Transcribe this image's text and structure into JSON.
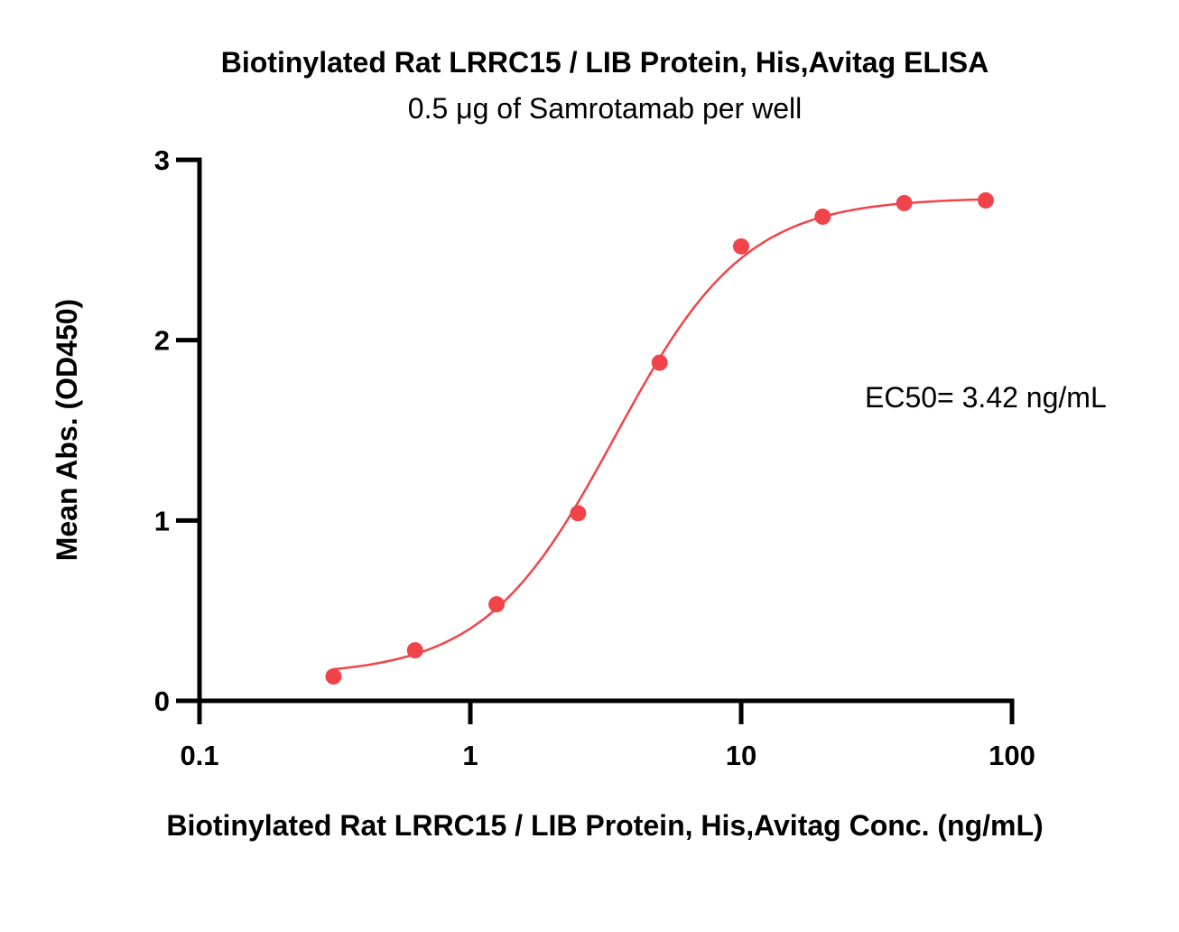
{
  "chart_data": {
    "type": "scatter",
    "title": "Biotinylated Rat LRRC15 / LIB Protein, His,Avitag ELISA",
    "subtitle": "0.5 μg of Samrotamab per well",
    "xlabel": "Biotinylated Rat LRRC15 / LIB Protein, His,Avitag Conc. (ng/mL)",
    "ylabel": "Mean Abs. (OD450)",
    "x_scale": "log",
    "xlim": [
      0.1,
      100
    ],
    "ylim": [
      0,
      3
    ],
    "x_ticks": [
      0.1,
      1,
      10,
      100
    ],
    "x_tick_labels": [
      "0.1",
      "1",
      "10",
      "100"
    ],
    "y_ticks": [
      0,
      1,
      2,
      3
    ],
    "y_tick_labels": [
      "0",
      "1",
      "2",
      "3"
    ],
    "grid": false,
    "series": [
      {
        "x": [
          0.3125,
          0.625,
          1.25,
          2.5,
          5,
          10,
          20,
          40,
          80
        ],
        "y": [
          0.135,
          0.28,
          0.535,
          1.04,
          1.875,
          2.52,
          2.685,
          2.76,
          2.775
        ],
        "color": "#f0444a"
      }
    ],
    "fit": {
      "model": "four-parameter logistic",
      "bottom": 0.14,
      "top": 2.79,
      "ec50": 3.42,
      "hill": 1.8,
      "color": "#f0444a"
    },
    "annotations": [
      "EC50= 3.42 ng/mL"
    ]
  }
}
